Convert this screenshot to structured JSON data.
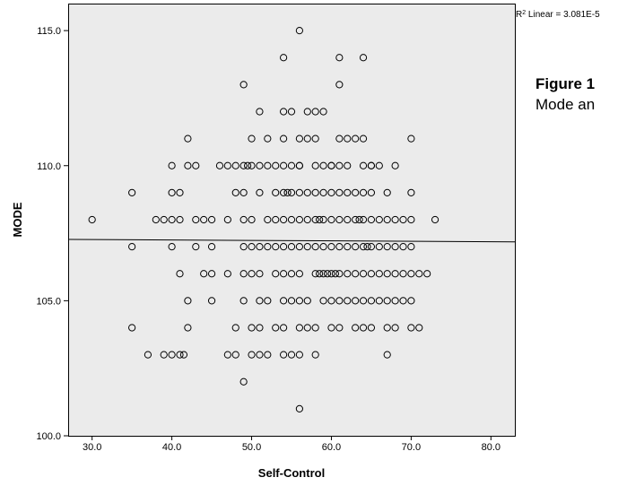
{
  "figure": {
    "title": "Figure 1",
    "caption": "Mode an"
  },
  "chart_data": {
    "type": "scatter",
    "title": "",
    "xlabel": "Self-Control",
    "ylabel": "MODE",
    "xlim": [
      27,
      83
    ],
    "ylim": [
      100,
      116
    ],
    "x_ticks": [
      30,
      40,
      50,
      60,
      70,
      80
    ],
    "y_ticks": [
      100,
      105,
      110,
      115
    ],
    "x_tick_labels": [
      "30.0",
      "40.0",
      "50.0",
      "60.0",
      "70.0",
      "80.0"
    ],
    "y_tick_labels": [
      "100.0",
      "105.0",
      "110.0",
      "115.0"
    ],
    "grid": false,
    "fit_line": {
      "label_prefix": "R",
      "label_sup": "2",
      "label_suffix": " Linear = 3.081E-5",
      "x": [
        27,
        83
      ],
      "y": [
        107.27,
        107.18
      ]
    },
    "points": [
      [
        56,
        115
      ],
      [
        54,
        114
      ],
      [
        61,
        114
      ],
      [
        64,
        114
      ],
      [
        49,
        113
      ],
      [
        61,
        113
      ],
      [
        51,
        112
      ],
      [
        54,
        112
      ],
      [
        55,
        112
      ],
      [
        57,
        112
      ],
      [
        58,
        112
      ],
      [
        59,
        112
      ],
      [
        42,
        111
      ],
      [
        50,
        111
      ],
      [
        52,
        111
      ],
      [
        54,
        111
      ],
      [
        56,
        111
      ],
      [
        57,
        111
      ],
      [
        58,
        111
      ],
      [
        61,
        111
      ],
      [
        62,
        111
      ],
      [
        63,
        111
      ],
      [
        64,
        111
      ],
      [
        70,
        111
      ],
      [
        42,
        110
      ],
      [
        50,
        110
      ],
      [
        55,
        110
      ],
      [
        56,
        110
      ],
      [
        60,
        110
      ],
      [
        65,
        110
      ],
      [
        66,
        110
      ],
      [
        40,
        110
      ],
      [
        43,
        110
      ],
      [
        46,
        110
      ],
      [
        47,
        110
      ],
      [
        48,
        110
      ],
      [
        49,
        110
      ],
      [
        49.5,
        110
      ],
      [
        51,
        110
      ],
      [
        52,
        110
      ],
      [
        53,
        110
      ],
      [
        54,
        110
      ],
      [
        56,
        110
      ],
      [
        58,
        110
      ],
      [
        59,
        110
      ],
      [
        60,
        110
      ],
      [
        61,
        110
      ],
      [
        62,
        110
      ],
      [
        64,
        110
      ],
      [
        65,
        110
      ],
      [
        68,
        110
      ],
      [
        35,
        109
      ],
      [
        40,
        109
      ],
      [
        41,
        109
      ],
      [
        48,
        109
      ],
      [
        49,
        109
      ],
      [
        51,
        109
      ],
      [
        53,
        109
      ],
      [
        54,
        109
      ],
      [
        54.5,
        109
      ],
      [
        55,
        109
      ],
      [
        56,
        109
      ],
      [
        57,
        109
      ],
      [
        58,
        109
      ],
      [
        59,
        109
      ],
      [
        60,
        109
      ],
      [
        61,
        109
      ],
      [
        62,
        109
      ],
      [
        63,
        109
      ],
      [
        64,
        109
      ],
      [
        65,
        109
      ],
      [
        67,
        109
      ],
      [
        70,
        109
      ],
      [
        30,
        108
      ],
      [
        38,
        108
      ],
      [
        39,
        108
      ],
      [
        40,
        108
      ],
      [
        41,
        108
      ],
      [
        43,
        108
      ],
      [
        44,
        108
      ],
      [
        45,
        108
      ],
      [
        47,
        108
      ],
      [
        49,
        108
      ],
      [
        50,
        108
      ],
      [
        52,
        108
      ],
      [
        53,
        108
      ],
      [
        54,
        108
      ],
      [
        55,
        108
      ],
      [
        56,
        108
      ],
      [
        57,
        108
      ],
      [
        58,
        108
      ],
      [
        58.5,
        108
      ],
      [
        59,
        108
      ],
      [
        60,
        108
      ],
      [
        61,
        108
      ],
      [
        62,
        108
      ],
      [
        63,
        108
      ],
      [
        63.5,
        108
      ],
      [
        64,
        108
      ],
      [
        65,
        108
      ],
      [
        66,
        108
      ],
      [
        67,
        108
      ],
      [
        68,
        108
      ],
      [
        69,
        108
      ],
      [
        70,
        108
      ],
      [
        73,
        108
      ],
      [
        35,
        107
      ],
      [
        40,
        107
      ],
      [
        43,
        107
      ],
      [
        45,
        107
      ],
      [
        49,
        107
      ],
      [
        50,
        107
      ],
      [
        51,
        107
      ],
      [
        52,
        107
      ],
      [
        53,
        107
      ],
      [
        54,
        107
      ],
      [
        55,
        107
      ],
      [
        56,
        107
      ],
      [
        57,
        107
      ],
      [
        58,
        107
      ],
      [
        59,
        107
      ],
      [
        60,
        107
      ],
      [
        61,
        107
      ],
      [
        62,
        107
      ],
      [
        63,
        107
      ],
      [
        64,
        107
      ],
      [
        64.5,
        107
      ],
      [
        65,
        107
      ],
      [
        66,
        107
      ],
      [
        67,
        107
      ],
      [
        68,
        107
      ],
      [
        69,
        107
      ],
      [
        70,
        107
      ],
      [
        41,
        106
      ],
      [
        44,
        106
      ],
      [
        45,
        106
      ],
      [
        47,
        106
      ],
      [
        49,
        106
      ],
      [
        50,
        106
      ],
      [
        51,
        106
      ],
      [
        53,
        106
      ],
      [
        54,
        106
      ],
      [
        55,
        106
      ],
      [
        56,
        106
      ],
      [
        58,
        106
      ],
      [
        58.5,
        106
      ],
      [
        59,
        106
      ],
      [
        59.5,
        106
      ],
      [
        60,
        106
      ],
      [
        60.5,
        106
      ],
      [
        61,
        106
      ],
      [
        62,
        106
      ],
      [
        63,
        106
      ],
      [
        64,
        106
      ],
      [
        65,
        106
      ],
      [
        66,
        106
      ],
      [
        67,
        106
      ],
      [
        68,
        106
      ],
      [
        69,
        106
      ],
      [
        70,
        106
      ],
      [
        71,
        106
      ],
      [
        72,
        106
      ],
      [
        42,
        105
      ],
      [
        45,
        105
      ],
      [
        49,
        105
      ],
      [
        51,
        105
      ],
      [
        52,
        105
      ],
      [
        54,
        105
      ],
      [
        55,
        105
      ],
      [
        56,
        105
      ],
      [
        57,
        105
      ],
      [
        59,
        105
      ],
      [
        60,
        105
      ],
      [
        61,
        105
      ],
      [
        62,
        105
      ],
      [
        63,
        105
      ],
      [
        64,
        105
      ],
      [
        65,
        105
      ],
      [
        66,
        105
      ],
      [
        67,
        105
      ],
      [
        68,
        105
      ],
      [
        69,
        105
      ],
      [
        70,
        105
      ],
      [
        35,
        104
      ],
      [
        42,
        104
      ],
      [
        48,
        104
      ],
      [
        50,
        104
      ],
      [
        51,
        104
      ],
      [
        53,
        104
      ],
      [
        54,
        104
      ],
      [
        56,
        104
      ],
      [
        57,
        104
      ],
      [
        58,
        104
      ],
      [
        60,
        104
      ],
      [
        61,
        104
      ],
      [
        63,
        104
      ],
      [
        64,
        104
      ],
      [
        65,
        104
      ],
      [
        67,
        104
      ],
      [
        68,
        104
      ],
      [
        70,
        104
      ],
      [
        71,
        104
      ],
      [
        37,
        103
      ],
      [
        39,
        103
      ],
      [
        40,
        103
      ],
      [
        41,
        103
      ],
      [
        41.5,
        103
      ],
      [
        47,
        103
      ],
      [
        48,
        103
      ],
      [
        50,
        103
      ],
      [
        51,
        103
      ],
      [
        52,
        103
      ],
      [
        54,
        103
      ],
      [
        55,
        103
      ],
      [
        56,
        103
      ],
      [
        58,
        103
      ],
      [
        67,
        103
      ],
      [
        49,
        102
      ],
      [
        56,
        101
      ]
    ]
  }
}
